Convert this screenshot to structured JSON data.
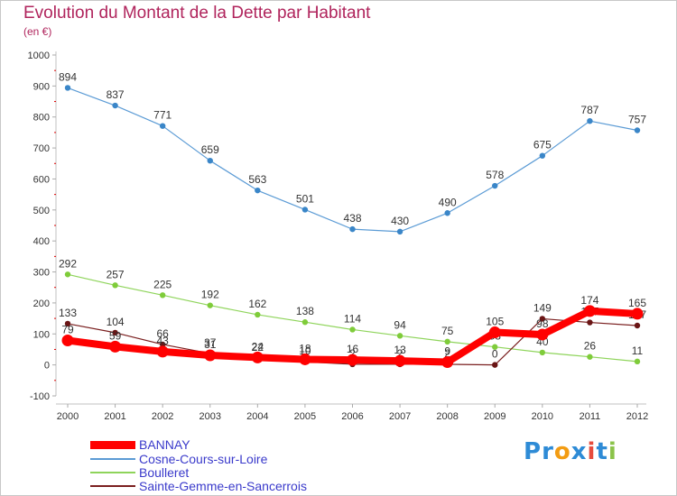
{
  "title": "Evolution du Montant de la Dette par Habitant",
  "subtitle": "(en €)",
  "logo": "Proxiti",
  "chart_data": {
    "type": "line",
    "ylim": [
      -100,
      1000
    ],
    "y_ticks": [
      -100,
      0,
      100,
      200,
      300,
      400,
      500,
      600,
      700,
      800,
      900,
      1000
    ],
    "categories": [
      "2000",
      "2001",
      "2002",
      "2003",
      "2004",
      "2005",
      "2006",
      "2007",
      "2008",
      "2009",
      "2010",
      "2011",
      "2012"
    ],
    "grid": false,
    "legend_position": "bottom-left",
    "series": [
      {
        "name": "BANNAY",
        "color": "#ff0000",
        "values": [
          79,
          59,
          43,
          31,
          24,
          18,
          16,
          13,
          9,
          105,
          98,
          174,
          165
        ],
        "labels": [
          "79",
          "59",
          "43",
          "31",
          "24",
          "18",
          "16",
          "13",
          "9",
          "105",
          "98",
          "174",
          "165"
        ]
      },
      {
        "name": "Cosne-Cours-sur-Loire",
        "color": "#5b9bd5",
        "values": [
          894,
          837,
          771,
          659,
          563,
          501,
          438,
          430,
          490,
          578,
          675,
          787,
          757
        ],
        "labels": [
          "894",
          "837",
          "771",
          "659",
          "563",
          "501",
          "438",
          "430",
          "490",
          "578",
          "675",
          "787",
          "757"
        ]
      },
      {
        "name": "Boulleret",
        "color": "#8ed45a",
        "values": [
          292,
          257,
          225,
          192,
          162,
          138,
          114,
          94,
          75,
          58,
          40,
          26,
          11
        ],
        "labels": [
          "292",
          "257",
          "225",
          "192",
          "162",
          "138",
          "114",
          "94",
          "75",
          "58",
          "40",
          "26",
          "11"
        ]
      },
      {
        "name": "Sainte-Gemme-en-Sancerrois",
        "color": "#7a1f1f",
        "values": [
          133,
          104,
          66,
          37,
          22,
          10,
          2,
          2,
          2,
          0,
          149,
          137,
          127
        ],
        "labels": [
          "133",
          "104",
          "66",
          "37",
          "22",
          "10",
          "2",
          "2",
          "2",
          "0",
          "149",
          "137",
          "127"
        ]
      }
    ]
  }
}
